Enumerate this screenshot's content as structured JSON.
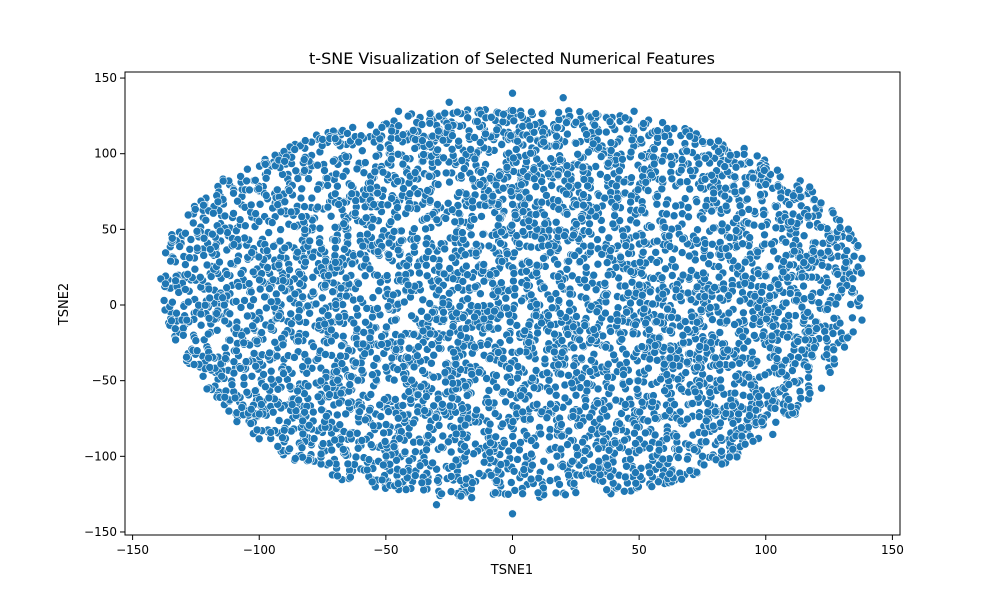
{
  "chart_data": {
    "type": "scatter",
    "title": "t-SNE Visualization of Selected Numerical Features",
    "xlabel": "TSNE1",
    "ylabel": "TSNE2",
    "xlim": [
      -153,
      153
    ],
    "ylim": [
      -152,
      154
    ],
    "xticks": [
      -150,
      -100,
      -50,
      0,
      50,
      100,
      150
    ],
    "yticks": [
      -150,
      -100,
      -50,
      0,
      50,
      100,
      150
    ],
    "grid": false,
    "legend": "none",
    "point_color": "#1f77b4",
    "point_edge_color": "#ffffff",
    "description_of_density": "dense elliptical cloud of many thousands of points",
    "cloud_extent": {
      "x_min": -138,
      "x_max": 138,
      "y_min": -138,
      "y_max": 140
    },
    "series": [
      {
        "values_sample": [
          {
            "x": -137,
            "y": 14
          },
          {
            "x": -135,
            "y": 29
          },
          {
            "x": -130,
            "y": -20
          },
          {
            "x": -128,
            "y": 2
          },
          {
            "x": -122,
            "y": 66
          },
          {
            "x": -120,
            "y": -35
          },
          {
            "x": -110,
            "y": 40
          },
          {
            "x": -110,
            "y": -45
          },
          {
            "x": -105,
            "y": 82
          },
          {
            "x": -100,
            "y": -72
          },
          {
            "x": -90,
            "y": 95
          },
          {
            "x": -88,
            "y": -95
          },
          {
            "x": -70,
            "y": 110
          },
          {
            "x": -65,
            "y": -105
          },
          {
            "x": -45,
            "y": 128
          },
          {
            "x": -42,
            "y": -122
          },
          {
            "x": -25,
            "y": 134
          },
          {
            "x": -30,
            "y": -132
          },
          {
            "x": 0,
            "y": 140
          },
          {
            "x": 0,
            "y": -138
          },
          {
            "x": 20,
            "y": 137
          },
          {
            "x": 25,
            "y": -124
          },
          {
            "x": 48,
            "y": 128
          },
          {
            "x": 55,
            "y": -120
          },
          {
            "x": 75,
            "y": 108
          },
          {
            "x": 75,
            "y": -100
          },
          {
            "x": 95,
            "y": 84
          },
          {
            "x": 95,
            "y": -90
          },
          {
            "x": 110,
            "y": 55
          },
          {
            "x": 115,
            "y": 28
          },
          {
            "x": 122,
            "y": -55
          },
          {
            "x": 130,
            "y": 10
          },
          {
            "x": 138,
            "y": -10
          }
        ]
      }
    ]
  }
}
